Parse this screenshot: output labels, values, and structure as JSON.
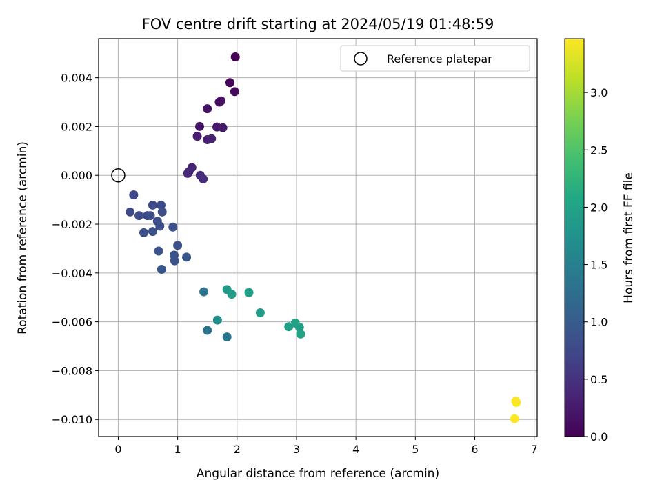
{
  "chart_data": {
    "type": "scatter",
    "title": "FOV centre drift starting at 2024/05/19 01:48:59",
    "xlabel": "Angular distance from reference (arcmin)",
    "ylabel": "Rotation from reference (arcmin)",
    "xlim": [
      -0.33,
      7.05
    ],
    "ylim": [
      -0.0107,
      0.0056
    ],
    "xticks": [
      0,
      1,
      2,
      3,
      4,
      5,
      6,
      7
    ],
    "xtick_labels": [
      "0",
      "1",
      "2",
      "3",
      "4",
      "5",
      "6",
      "7"
    ],
    "yticks": [
      0.004,
      0.002,
      0.0,
      -0.002,
      -0.004,
      -0.006,
      -0.008,
      -0.01
    ],
    "ytick_labels": [
      "0.004",
      "0.002",
      "0.000",
      "−0.002",
      "−0.004",
      "−0.006",
      "−0.008",
      "−0.010"
    ],
    "grid": true,
    "colormap": "viridis",
    "legend": {
      "position": "top-right",
      "entries": [
        {
          "label": "Reference platepar",
          "marker": "open-circle"
        }
      ]
    },
    "reference_point": {
      "x": 0,
      "y": 0
    },
    "colorbar": {
      "label": "Hours from first FF file",
      "range": [
        0,
        3.47
      ],
      "ticks": [
        0.0,
        0.5,
        1.0,
        1.5,
        2.0,
        2.5,
        3.0
      ],
      "tick_labels": [
        "0.0",
        "0.5",
        "1.0",
        "1.5",
        "2.0",
        "2.5",
        "3.0"
      ]
    },
    "points": [
      {
        "x": 1.97,
        "y": 0.00485,
        "t": 0.0
      },
      {
        "x": 1.88,
        "y": 0.0038,
        "t": 0.05
      },
      {
        "x": 1.96,
        "y": 0.00343,
        "t": 0.08
      },
      {
        "x": 1.7,
        "y": 0.003,
        "t": 0.12
      },
      {
        "x": 1.73,
        "y": 0.00305,
        "t": 0.14
      },
      {
        "x": 1.5,
        "y": 0.00273,
        "t": 0.17
      },
      {
        "x": 1.37,
        "y": 0.002,
        "t": 0.2
      },
      {
        "x": 1.66,
        "y": 0.00198,
        "t": 0.22
      },
      {
        "x": 1.76,
        "y": 0.00195,
        "t": 0.25
      },
      {
        "x": 1.33,
        "y": 0.0016,
        "t": 0.28
      },
      {
        "x": 1.5,
        "y": 0.00146,
        "t": 0.3
      },
      {
        "x": 1.57,
        "y": 0.0015,
        "t": 0.32
      },
      {
        "x": 1.24,
        "y": 0.00032,
        "t": 0.36
      },
      {
        "x": 1.19,
        "y": 0.00015,
        "t": 0.38
      },
      {
        "x": 1.17,
        "y": 8e-05,
        "t": 0.4
      },
      {
        "x": 1.38,
        "y": 0.0,
        "t": 0.43
      },
      {
        "x": 1.43,
        "y": -0.00015,
        "t": 0.46
      },
      {
        "x": 0.26,
        "y": -0.0008,
        "t": 0.75
      },
      {
        "x": 0.2,
        "y": -0.0015,
        "t": 0.78
      },
      {
        "x": 0.35,
        "y": -0.00165,
        "t": 0.8
      },
      {
        "x": 0.49,
        "y": -0.00165,
        "t": 0.8
      },
      {
        "x": 0.54,
        "y": -0.00165,
        "t": 0.82
      },
      {
        "x": 0.58,
        "y": -0.00122,
        "t": 0.79
      },
      {
        "x": 0.72,
        "y": -0.00122,
        "t": 0.8
      },
      {
        "x": 0.74,
        "y": -0.0015,
        "t": 0.82
      },
      {
        "x": 0.66,
        "y": -0.00188,
        "t": 0.84
      },
      {
        "x": 0.7,
        "y": -0.00208,
        "t": 0.84
      },
      {
        "x": 0.92,
        "y": -0.00212,
        "t": 0.85
      },
      {
        "x": 0.43,
        "y": -0.00235,
        "t": 0.85
      },
      {
        "x": 0.58,
        "y": -0.0023,
        "t": 0.86
      },
      {
        "x": 1.0,
        "y": -0.00287,
        "t": 0.88
      },
      {
        "x": 0.68,
        "y": -0.0031,
        "t": 0.88
      },
      {
        "x": 0.94,
        "y": -0.00327,
        "t": 0.88
      },
      {
        "x": 0.95,
        "y": -0.0035,
        "t": 0.9
      },
      {
        "x": 1.15,
        "y": -0.00335,
        "t": 0.92
      },
      {
        "x": 0.73,
        "y": -0.00385,
        "t": 0.92
      },
      {
        "x": 1.44,
        "y": -0.00477,
        "t": 1.3
      },
      {
        "x": 1.5,
        "y": -0.00635,
        "t": 1.32
      },
      {
        "x": 1.67,
        "y": -0.00593,
        "t": 1.7
      },
      {
        "x": 1.83,
        "y": -0.00662,
        "t": 1.35
      },
      {
        "x": 1.83,
        "y": -0.00468,
        "t": 1.85
      },
      {
        "x": 1.91,
        "y": -0.00487,
        "t": 1.9
      },
      {
        "x": 2.2,
        "y": -0.0048,
        "t": 1.95
      },
      {
        "x": 2.39,
        "y": -0.00563,
        "t": 1.92
      },
      {
        "x": 2.87,
        "y": -0.0062,
        "t": 1.95
      },
      {
        "x": 2.98,
        "y": -0.00605,
        "t": 1.97
      },
      {
        "x": 3.05,
        "y": -0.00622,
        "t": 1.98
      },
      {
        "x": 3.07,
        "y": -0.0065,
        "t": 2.0
      },
      {
        "x": 6.69,
        "y": -0.00925,
        "t": 3.45
      },
      {
        "x": 6.7,
        "y": -0.0093,
        "t": 3.46
      },
      {
        "x": 6.67,
        "y": -0.00997,
        "t": 3.47
      }
    ]
  }
}
